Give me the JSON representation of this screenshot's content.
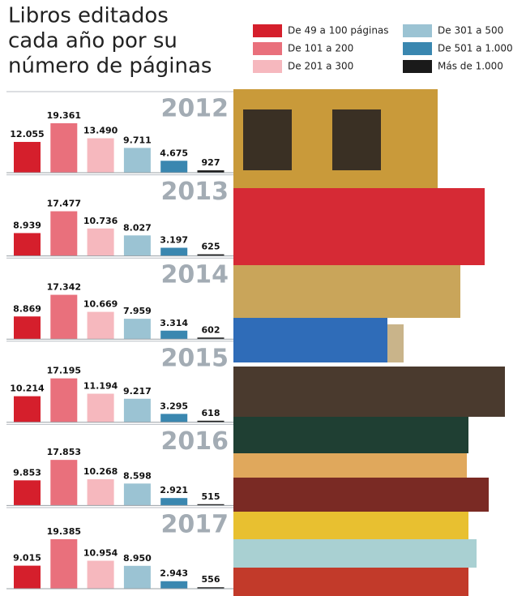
{
  "chart_data": {
    "type": "bar",
    "title_lines": [
      "Libros editados",
      "cada año por su",
      "número de páginas"
    ],
    "categories": [
      "2012",
      "2013",
      "2014",
      "2015",
      "2016",
      "2017"
    ],
    "series": [
      {
        "name": "De 49 a 100 páginas",
        "color": "#d51f2c",
        "values": [
          12055,
          8939,
          8869,
          10214,
          9853,
          9015
        ],
        "value_labels": [
          "12.055",
          "8.939",
          "8.869",
          "10.214",
          "9.853",
          "9.015"
        ]
      },
      {
        "name": "De 101 a 200",
        "color": "#e9707c",
        "values": [
          19361,
          17477,
          17342,
          17195,
          17853,
          19385
        ],
        "value_labels": [
          "19.361",
          "17.477",
          "17.342",
          "17.195",
          "17.853",
          "19.385"
        ]
      },
      {
        "name": "De 201 a 300",
        "color": "#f6b8be",
        "values": [
          13490,
          10736,
          10669,
          11194,
          10268,
          10954
        ],
        "value_labels": [
          "13.490",
          "10.736",
          "10.669",
          "11.194",
          "10.268",
          "10.954"
        ]
      },
      {
        "name": "De 301 a 500",
        "color": "#9bc3d3",
        "values": [
          9711,
          8027,
          7959,
          9217,
          8598,
          8950
        ],
        "value_labels": [
          "9.711",
          "8.027",
          "7.959",
          "9.217",
          "8.598",
          "8.950"
        ]
      },
      {
        "name": "De 501 a 1.000",
        "color": "#3a87b0",
        "values": [
          4675,
          3197,
          3314,
          3295,
          2921,
          2943
        ],
        "value_labels": [
          "4.675",
          "3.197",
          "3.314",
          "3.295",
          "2.921",
          "2.943"
        ]
      },
      {
        "name": "Más de 1.000",
        "color": "#1a1a1a",
        "values": [
          927,
          625,
          602,
          618,
          515,
          556
        ],
        "value_labels": [
          "927",
          "625",
          "602",
          "618",
          "515",
          "556"
        ]
      }
    ]
  }
}
